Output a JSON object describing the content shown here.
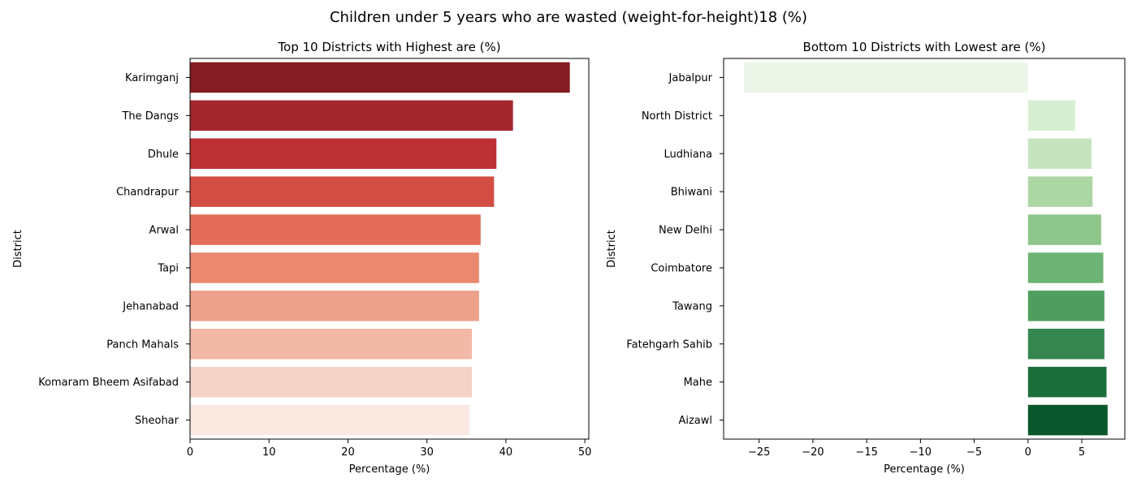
{
  "figure": {
    "title": "Children under 5 years who are wasted (weight-for-height)18 (%)"
  },
  "chart_data": [
    {
      "type": "bar",
      "orientation": "horizontal",
      "title": "Top 10 Districts with Highest are (%)",
      "xlabel": "Percentage (%)",
      "ylabel": "District",
      "xlim": [
        0,
        50.5
      ],
      "xticks": [
        0,
        10,
        20,
        30,
        40,
        50
      ],
      "grid": false,
      "categories": [
        "Karimganj",
        "The Dangs",
        "Dhule",
        "Chandrapur",
        "Arwal",
        "Tapi",
        "Jehanabad",
        "Panch Mahals",
        "Komaram Bheem Asifabad",
        "Sheohar"
      ],
      "values": [
        48.1,
        40.9,
        38.8,
        38.5,
        36.8,
        36.6,
        36.6,
        35.7,
        35.7,
        35.4
      ],
      "colors": [
        "#851b24",
        "#a4262d",
        "#bd3035",
        "#d44d45",
        "#e36d58",
        "#ea8870",
        "#eda08a",
        "#f2b9a6",
        "#f5d2c6",
        "#fae8e1"
      ]
    },
    {
      "type": "bar",
      "orientation": "horizontal",
      "title": "Bottom 10 Districts with Lowest are (%)",
      "xlabel": "Percentage (%)",
      "ylabel": "District",
      "xlim": [
        -28.3,
        9
      ],
      "xticks": [
        -25,
        -20,
        -15,
        -10,
        -5,
        0,
        5
      ],
      "tick_labels": [
        "−25",
        "−20",
        "−15",
        "−10",
        "−5",
        "0",
        "5"
      ],
      "grid": false,
      "categories": [
        "Jabalpur",
        "North  District",
        "Ludhiana",
        "Bhiwani",
        "New Delhi",
        "Coimbatore",
        "Tawang",
        "Fatehgarh Sahib",
        "Mahe",
        "Aizawl"
      ],
      "values": [
        -26.4,
        4.4,
        5.9,
        6.0,
        6.8,
        7.0,
        7.1,
        7.1,
        7.3,
        7.4
      ],
      "colors": [
        "#ebf6e8",
        "#d8eed3",
        "#c6e4c0",
        "#acd6a4",
        "#8fc68b",
        "#6db373",
        "#4f9e5f",
        "#35874f",
        "#1c6f3b",
        "#0a572e"
      ]
    }
  ]
}
